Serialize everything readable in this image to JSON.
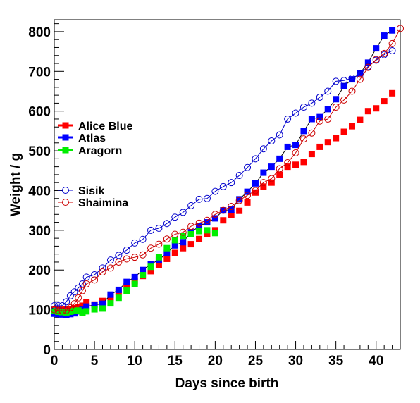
{
  "chart_data": {
    "type": "scatter",
    "title": "",
    "xlabel": "Days since birth",
    "ylabel": "Weight / g",
    "xlim": [
      0,
      43
    ],
    "ylim": [
      0,
      830
    ],
    "x_ticks": [
      0,
      5,
      10,
      15,
      20,
      25,
      30,
      35,
      40
    ],
    "y_ticks": [
      0,
      100,
      200,
      300,
      400,
      500,
      600,
      700,
      800
    ],
    "grid": false,
    "legend_position": "left",
    "series": [
      {
        "name": "Alice Blue",
        "color": "#ff0000",
        "marker": "filled-square",
        "line": false,
        "points": [
          [
            0,
            100
          ],
          [
            0.5,
            101
          ],
          [
            1,
            100
          ],
          [
            1.5,
            101
          ],
          [
            2,
            102
          ],
          [
            2.5,
            104
          ],
          [
            3,
            106
          ],
          [
            3.5,
            110
          ],
          [
            4,
            118
          ],
          [
            5,
            113
          ],
          [
            6,
            122
          ],
          [
            7,
            130
          ],
          [
            8,
            145
          ],
          [
            9,
            160
          ],
          [
            10,
            172
          ],
          [
            11,
            185
          ],
          [
            12,
            197
          ],
          [
            13,
            212
          ],
          [
            14,
            228
          ],
          [
            15,
            243
          ],
          [
            16,
            255
          ],
          [
            17,
            265
          ],
          [
            18,
            278
          ],
          [
            19,
            290
          ],
          [
            20,
            300
          ],
          [
            21,
            325
          ],
          [
            22,
            338
          ],
          [
            23,
            349
          ],
          [
            24,
            370
          ],
          [
            25,
            395
          ],
          [
            26,
            410
          ],
          [
            27,
            420
          ],
          [
            28,
            440
          ],
          [
            29,
            460
          ],
          [
            30,
            465
          ],
          [
            31,
            472
          ],
          [
            32,
            492
          ],
          [
            33,
            510
          ],
          [
            34,
            522
          ],
          [
            35,
            532
          ],
          [
            36,
            548
          ],
          [
            37,
            562
          ],
          [
            38,
            578
          ],
          [
            39,
            600
          ],
          [
            40,
            607
          ],
          [
            41,
            625
          ],
          [
            42,
            645
          ]
        ]
      },
      {
        "name": "Atlas",
        "color": "#0000ff",
        "marker": "filled-square",
        "line": true,
        "points": [
          [
            0,
            90
          ],
          [
            0.5,
            89
          ],
          [
            1,
            88
          ],
          [
            1.5,
            87
          ],
          [
            2,
            89
          ],
          [
            2.5,
            91
          ],
          [
            3,
            96
          ],
          [
            3.5,
            100
          ],
          [
            4,
            108
          ],
          [
            5,
            112
          ],
          [
            6,
            115
          ],
          [
            7,
            138
          ],
          [
            8,
            150
          ],
          [
            9,
            170
          ],
          [
            10,
            182
          ],
          [
            11,
            200
          ],
          [
            12,
            215
          ],
          [
            13,
            225
          ],
          [
            14,
            243
          ],
          [
            15,
            262
          ],
          [
            16,
            270
          ],
          [
            17,
            295
          ],
          [
            18,
            310
          ],
          [
            19,
            320
          ],
          [
            20,
            330
          ],
          [
            21,
            350
          ],
          [
            22,
            352
          ],
          [
            23,
            378
          ],
          [
            24,
            397
          ],
          [
            25,
            418
          ],
          [
            26,
            445
          ],
          [
            27,
            460
          ],
          [
            28,
            480
          ],
          [
            29,
            510
          ],
          [
            30,
            515
          ],
          [
            31,
            550
          ],
          [
            32,
            580
          ],
          [
            33,
            585
          ],
          [
            34,
            605
          ],
          [
            35,
            630
          ],
          [
            36,
            663
          ],
          [
            37,
            680
          ],
          [
            38,
            695
          ],
          [
            39,
            722
          ],
          [
            40,
            758
          ],
          [
            41,
            790
          ],
          [
            42,
            803
          ]
        ]
      },
      {
        "name": "Aragorn",
        "color": "#00ee00",
        "marker": "filled-square",
        "line": false,
        "points": [
          [
            0,
            97
          ],
          [
            0.5,
            95
          ],
          [
            1,
            94
          ],
          [
            1.5,
            93
          ],
          [
            2,
            95
          ],
          [
            2.5,
            97
          ],
          [
            3,
            98
          ],
          [
            3.5,
            93
          ],
          [
            4,
            96
          ],
          [
            5,
            101
          ],
          [
            6,
            103
          ],
          [
            7,
            116
          ],
          [
            8,
            130
          ],
          [
            9,
            148
          ],
          [
            10,
            165
          ],
          [
            11,
            187
          ],
          [
            12,
            208
          ],
          [
            13,
            232
          ],
          [
            14,
            255
          ],
          [
            15,
            275
          ],
          [
            16,
            286
          ],
          [
            17,
            290
          ],
          [
            18,
            298
          ],
          [
            19,
            300
          ],
          [
            20,
            293
          ]
        ]
      },
      {
        "name": "Sisik",
        "color": "#0000cc",
        "marker": "open-circle",
        "line": true,
        "points": [
          [
            0,
            110
          ],
          [
            0.5,
            110
          ],
          [
            1,
            110
          ],
          [
            1.5,
            120
          ],
          [
            2,
            135
          ],
          [
            2.5,
            145
          ],
          [
            3,
            155
          ],
          [
            3.5,
            165
          ],
          [
            4,
            182
          ],
          [
            5,
            188
          ],
          [
            6,
            205
          ],
          [
            7,
            225
          ],
          [
            8,
            237
          ],
          [
            9,
            250
          ],
          [
            10,
            268
          ],
          [
            11,
            277
          ],
          [
            12,
            300
          ],
          [
            13,
            305
          ],
          [
            14,
            317
          ],
          [
            15,
            333
          ],
          [
            16,
            345
          ],
          [
            17,
            362
          ],
          [
            18,
            378
          ],
          [
            19,
            380
          ],
          [
            20,
            398
          ],
          [
            21,
            410
          ],
          [
            22,
            420
          ],
          [
            23,
            438
          ],
          [
            24,
            458
          ],
          [
            25,
            480
          ],
          [
            26,
            505
          ],
          [
            27,
            525
          ],
          [
            28,
            540
          ],
          [
            29,
            580
          ],
          [
            30,
            595
          ],
          [
            31,
            610
          ],
          [
            32,
            620
          ],
          [
            33,
            635
          ],
          [
            34,
            650
          ],
          [
            35,
            675
          ],
          [
            36,
            677
          ],
          [
            37,
            683
          ],
          [
            38,
            693
          ],
          [
            39,
            712
          ],
          [
            40,
            728
          ],
          [
            41,
            742
          ],
          [
            42,
            752
          ]
        ]
      },
      {
        "name": "Shaimina",
        "color": "#cc0000",
        "marker": "open-circle",
        "line": true,
        "points": [
          [
            0,
            100
          ],
          [
            0.5,
            98
          ],
          [
            1,
            97
          ],
          [
            1.5,
            98
          ],
          [
            2,
            105
          ],
          [
            2.5,
            115
          ],
          [
            3,
            130
          ],
          [
            3.5,
            148
          ],
          [
            4,
            165
          ],
          [
            5,
            175
          ],
          [
            6,
            195
          ],
          [
            7,
            205
          ],
          [
            8,
            220
          ],
          [
            9,
            228
          ],
          [
            10,
            232
          ],
          [
            11,
            238
          ],
          [
            12,
            255
          ],
          [
            13,
            265
          ],
          [
            14,
            278
          ],
          [
            15,
            290
          ],
          [
            16,
            295
          ],
          [
            17,
            310
          ],
          [
            18,
            318
          ],
          [
            19,
            325
          ],
          [
            20,
            340
          ],
          [
            21,
            350
          ],
          [
            22,
            360
          ],
          [
            23,
            375
          ],
          [
            24,
            388
          ],
          [
            25,
            400
          ],
          [
            26,
            420
          ],
          [
            27,
            430
          ],
          [
            28,
            455
          ],
          [
            29,
            470
          ],
          [
            30,
            495
          ],
          [
            31,
            530
          ],
          [
            32,
            545
          ],
          [
            33,
            575
          ],
          [
            34,
            580
          ],
          [
            35,
            610
          ],
          [
            36,
            628
          ],
          [
            37,
            650
          ],
          [
            38,
            680
          ],
          [
            39,
            710
          ],
          [
            40,
            730
          ],
          [
            41,
            745
          ],
          [
            42,
            770
          ],
          [
            43,
            808
          ]
        ]
      }
    ]
  }
}
